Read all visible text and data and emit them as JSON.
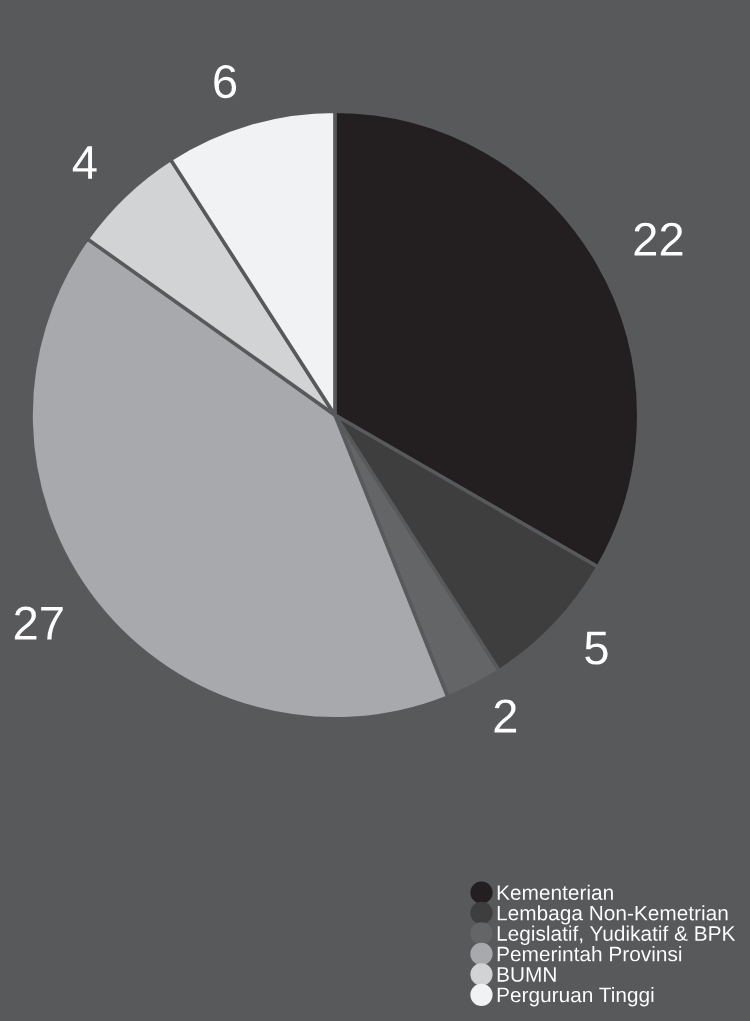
{
  "chart_data": {
    "type": "pie",
    "categories": [
      "Kementerian",
      "Lembaga Non-Kemetrian",
      "Legislatif, Yudikatif & BPK",
      "Pemerintah Provinsi",
      "BUMN",
      "Perguruan Tinggi"
    ],
    "values": [
      22,
      5,
      2,
      27,
      4,
      6
    ],
    "colors": [
      "#231f20",
      "#3e3e3f",
      "#646567",
      "#a7a9ac",
      "#d1d3d4",
      "#f1f2f4"
    ],
    "data_labels": true,
    "legend": "bottom right"
  }
}
